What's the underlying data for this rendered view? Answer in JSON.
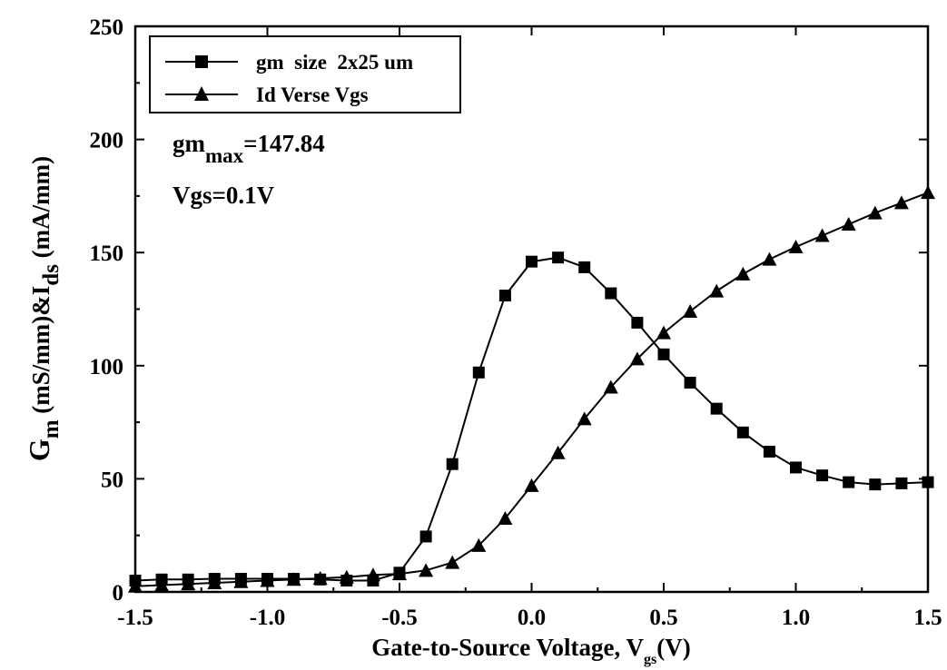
{
  "chart_data": {
    "type": "line",
    "xlabel_main": "Gate-to-Source Voltage, V",
    "xlabel_sub": "gs",
    "xlabel_tail": "(V)",
    "ylabel_g": "G",
    "ylabel_g_sub": "m",
    "ylabel_mid": " (mS/mm)&I",
    "ylabel_i_sub": "ds",
    "ylabel_tail": " (mA/mm)",
    "xlim": [
      -1.5,
      1.5
    ],
    "ylim": [
      0,
      250
    ],
    "xticks": [
      "-1.5",
      "-1.0",
      "-0.5",
      "0.0",
      "0.5",
      "1.0",
      "1.5"
    ],
    "yticks": [
      "0",
      "50",
      "100",
      "150",
      "200",
      "250"
    ],
    "grid": false,
    "legend_position": "top-left",
    "annotations": {
      "gm_base": "gm",
      "gm_sub": "max",
      "gm_value": "=147.84",
      "vgs": "Vgs=0.1V"
    },
    "series": [
      {
        "name": "gm  size  2x25 um",
        "marker": "square",
        "x": [
          -1.5,
          -1.4,
          -1.3,
          -1.2,
          -1.1,
          -1.0,
          -0.9,
          -0.8,
          -0.7,
          -0.6,
          -0.5,
          -0.4,
          -0.3,
          -0.2,
          -0.1,
          0.0,
          0.1,
          0.2,
          0.3,
          0.4,
          0.5,
          0.6,
          0.7,
          0.8,
          0.9,
          1.0,
          1.1,
          1.2,
          1.3,
          1.4,
          1.5
        ],
        "y": [
          5,
          5.5,
          5.5,
          5.8,
          5.8,
          5.8,
          5.8,
          5.5,
          5,
          5,
          8.5,
          24.5,
          56.5,
          97,
          131,
          146,
          147.8,
          143.5,
          132,
          119,
          105,
          92.5,
          81,
          70.5,
          62,
          55,
          51.5,
          48.5,
          47.5,
          48,
          48.5
        ]
      },
      {
        "name": "Id Verse Vgs",
        "marker": "triangle",
        "x": [
          -1.5,
          -1.4,
          -1.3,
          -1.2,
          -1.1,
          -1.0,
          -0.9,
          -0.8,
          -0.7,
          -0.6,
          -0.5,
          -0.4,
          -0.3,
          -0.2,
          -0.1,
          0.0,
          0.1,
          0.2,
          0.3,
          0.4,
          0.5,
          0.6,
          0.7,
          0.8,
          0.9,
          1.0,
          1.1,
          1.2,
          1.3,
          1.4,
          1.5
        ],
        "y": [
          2.5,
          3,
          3.5,
          4,
          4.5,
          5,
          5.5,
          6,
          6.5,
          7.5,
          8,
          9.5,
          13,
          20.5,
          32.5,
          47,
          61.5,
          76.5,
          90.5,
          103,
          114.5,
          124,
          133,
          140.5,
          147,
          152.5,
          157.5,
          162.5,
          167.5,
          172,
          176.5
        ]
      }
    ]
  }
}
